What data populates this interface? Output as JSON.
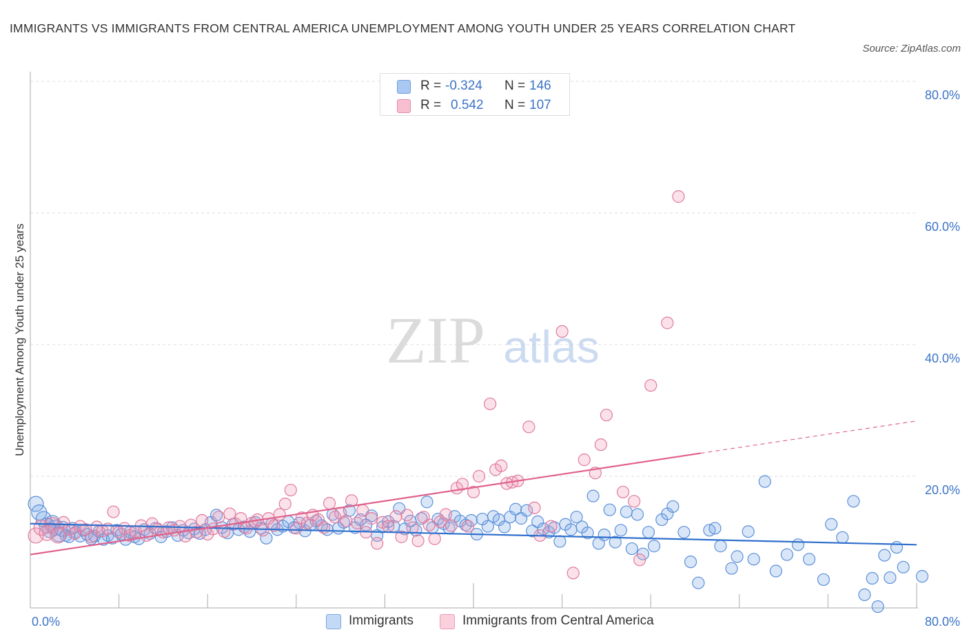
{
  "title": "IMMIGRANTS VS IMMIGRANTS FROM CENTRAL AMERICA UNEMPLOYMENT AMONG YOUTH UNDER 25 YEARS CORRELATION CHART",
  "source": "Source: ZipAtlas.com",
  "watermark": {
    "zip": "ZIP",
    "atlas": "atlas"
  },
  "legend": {
    "r_label": "R =",
    "n_label": "N =",
    "rows": [
      {
        "r": "-0.324",
        "n": "146",
        "color": "#a9c8f2",
        "border": "#6b9ee0"
      },
      {
        "r": "0.542",
        "n": "107",
        "color": "#f7bfd0",
        "border": "#e889a6"
      }
    ]
  },
  "bottom_legend": [
    {
      "label": "Immigrants",
      "color": "#c4d9f5",
      "border": "#7aa6e0"
    },
    {
      "label": "Immigrants from Central America",
      "color": "#f9d0dc",
      "border": "#eb9ab3"
    }
  ],
  "chart_data": {
    "type": "scatter",
    "ylabel": "Unemployment Among Youth under 25 years",
    "x_tick_labels": [
      "0.0%",
      "80.0%"
    ],
    "y_tick_labels": [
      "20.0%",
      "40.0%",
      "60.0%",
      "80.0%"
    ],
    "xlim": [
      0,
      80
    ],
    "ylim": [
      0,
      80
    ],
    "grid": true,
    "series": [
      {
        "name": "Immigrants",
        "color": "#5b8fd9",
        "fill": "rgba(120,165,230,0.28)",
        "trend": {
          "x0": 0,
          "y0": 12.8,
          "x1": 80,
          "y1": 9.6,
          "color": "#2f6fcb"
        },
        "points": [
          [
            0.5,
            15.8
          ],
          [
            0.8,
            14.5
          ],
          [
            1.2,
            13.5
          ],
          [
            1.5,
            12.5
          ],
          [
            1.8,
            11.8
          ],
          [
            2.0,
            12.9
          ],
          [
            2.3,
            12.2
          ],
          [
            2.6,
            11.2
          ],
          [
            2.9,
            12.0
          ],
          [
            3.2,
            11.0
          ],
          [
            3.5,
            10.8
          ],
          [
            3.8,
            12.1
          ],
          [
            4.1,
            11.5
          ],
          [
            4.5,
            10.9
          ],
          [
            4.8,
            11.8
          ],
          [
            5.1,
            11.2
          ],
          [
            5.5,
            10.5
          ],
          [
            5.8,
            10.9
          ],
          [
            6.2,
            11.6
          ],
          [
            6.6,
            10.4
          ],
          [
            7.0,
            11.0
          ],
          [
            7.4,
            10.6
          ],
          [
            7.8,
            11.8
          ],
          [
            8.2,
            11.2
          ],
          [
            8.6,
            10.4
          ],
          [
            9.0,
            11.5
          ],
          [
            9.4,
            10.8
          ],
          [
            9.8,
            10.5
          ],
          [
            10.3,
            11.9
          ],
          [
            10.8,
            11.3
          ],
          [
            11.3,
            12.1
          ],
          [
            11.8,
            10.8
          ],
          [
            12.3,
            11.6
          ],
          [
            12.8,
            12.2
          ],
          [
            13.3,
            11.0
          ],
          [
            13.8,
            11.8
          ],
          [
            14.3,
            11.4
          ],
          [
            14.8,
            12.0
          ],
          [
            15.3,
            11.3
          ],
          [
            15.8,
            11.9
          ],
          [
            16.3,
            13.0
          ],
          [
            16.8,
            14.1
          ],
          [
            17.3,
            12.2
          ],
          [
            17.8,
            11.4
          ],
          [
            18.3,
            12.7
          ],
          [
            18.8,
            11.9
          ],
          [
            19.3,
            12.3
          ],
          [
            19.8,
            11.6
          ],
          [
            20.3,
            13.0
          ],
          [
            20.8,
            12.1
          ],
          [
            21.3,
            10.6
          ],
          [
            21.8,
            12.8
          ],
          [
            22.3,
            11.9
          ],
          [
            22.8,
            12.4
          ],
          [
            23.3,
            13.1
          ],
          [
            23.8,
            12.2
          ],
          [
            24.3,
            12.9
          ],
          [
            24.8,
            11.7
          ],
          [
            25.3,
            12.6
          ],
          [
            25.8,
            13.2
          ],
          [
            26.3,
            12.5
          ],
          [
            26.8,
            11.9
          ],
          [
            27.3,
            14.2
          ],
          [
            27.8,
            12.1
          ],
          [
            28.3,
            13.0
          ],
          [
            28.8,
            14.8
          ],
          [
            29.3,
            12.2
          ],
          [
            29.8,
            13.4
          ],
          [
            30.3,
            12.6
          ],
          [
            30.8,
            14.0
          ],
          [
            31.3,
            11.0
          ],
          [
            31.8,
            12.3
          ],
          [
            32.3,
            13.1
          ],
          [
            32.8,
            12.4
          ],
          [
            33.3,
            15.1
          ],
          [
            33.8,
            12.0
          ],
          [
            34.3,
            13.2
          ],
          [
            34.8,
            11.8
          ],
          [
            35.3,
            13.6
          ],
          [
            35.8,
            16.1
          ],
          [
            36.3,
            12.2
          ],
          [
            36.8,
            13.5
          ],
          [
            37.3,
            12.8
          ],
          [
            37.8,
            12.1
          ],
          [
            38.3,
            13.9
          ],
          [
            38.8,
            13.2
          ],
          [
            39.3,
            12.6
          ],
          [
            39.8,
            13.3
          ],
          [
            40.3,
            11.2
          ],
          [
            40.8,
            13.5
          ],
          [
            41.3,
            12.4
          ],
          [
            41.8,
            13.9
          ],
          [
            42.3,
            13.4
          ],
          [
            42.8,
            12.3
          ],
          [
            43.3,
            13.8
          ],
          [
            43.8,
            15.0
          ],
          [
            44.3,
            13.6
          ],
          [
            44.8,
            14.8
          ],
          [
            45.3,
            11.7
          ],
          [
            45.8,
            13.1
          ],
          [
            46.3,
            12.0
          ],
          [
            46.8,
            11.5
          ],
          [
            47.3,
            12.2
          ],
          [
            47.8,
            10.1
          ],
          [
            48.3,
            12.7
          ],
          [
            48.8,
            11.9
          ],
          [
            49.3,
            13.8
          ],
          [
            49.8,
            12.3
          ],
          [
            50.3,
            11.4
          ],
          [
            50.8,
            17.0
          ],
          [
            51.3,
            9.8
          ],
          [
            51.8,
            11.1
          ],
          [
            52.3,
            14.9
          ],
          [
            52.8,
            10.0
          ],
          [
            53.3,
            11.8
          ],
          [
            53.8,
            14.6
          ],
          [
            54.3,
            9.0
          ],
          [
            54.8,
            14.2
          ],
          [
            55.3,
            8.2
          ],
          [
            55.8,
            11.5
          ],
          [
            56.3,
            9.4
          ],
          [
            57.0,
            13.4
          ],
          [
            57.5,
            14.3
          ],
          [
            58.0,
            15.4
          ],
          [
            59.0,
            11.5
          ],
          [
            59.6,
            7.0
          ],
          [
            60.3,
            3.8
          ],
          [
            61.3,
            11.8
          ],
          [
            61.8,
            12.1
          ],
          [
            62.3,
            9.4
          ],
          [
            63.3,
            6.0
          ],
          [
            63.8,
            7.8
          ],
          [
            64.8,
            11.6
          ],
          [
            65.3,
            7.4
          ],
          [
            66.3,
            19.2
          ],
          [
            67.3,
            5.6
          ],
          [
            68.3,
            8.1
          ],
          [
            69.3,
            9.6
          ],
          [
            70.3,
            7.4
          ],
          [
            71.6,
            4.3
          ],
          [
            72.3,
            12.7
          ],
          [
            73.3,
            10.7
          ],
          [
            74.3,
            16.2
          ],
          [
            75.3,
            2.0
          ],
          [
            76.0,
            4.5
          ],
          [
            76.5,
            0.2
          ],
          [
            77.1,
            8.0
          ],
          [
            77.6,
            4.6
          ],
          [
            78.2,
            9.2
          ],
          [
            78.8,
            6.2
          ],
          [
            80.5,
            4.8
          ]
        ]
      },
      {
        "name": "Immigrants from Central America",
        "color": "#e07a9c",
        "fill": "rgba(240,150,180,0.28)",
        "trend": {
          "x0": 0,
          "y0": 8.1,
          "x1": 60.5,
          "y1": 23.5,
          "dash_x1": 80,
          "dash_y1": 28.4,
          "color": "#e0608a"
        },
        "points": [
          [
            0.5,
            11.0
          ],
          [
            1.0,
            12.2
          ],
          [
            1.5,
            11.4
          ],
          [
            2.0,
            12.6
          ],
          [
            2.5,
            11.0
          ],
          [
            3.0,
            13.0
          ],
          [
            3.5,
            11.9
          ],
          [
            4.0,
            11.3
          ],
          [
            4.5,
            12.4
          ],
          [
            5.0,
            11.9
          ],
          [
            5.5,
            10.8
          ],
          [
            6.0,
            12.3
          ],
          [
            6.5,
            11.7
          ],
          [
            7.0,
            12.0
          ],
          [
            7.5,
            14.6
          ],
          [
            8.0,
            11.5
          ],
          [
            8.5,
            12.1
          ],
          [
            9.0,
            11.0
          ],
          [
            9.5,
            11.6
          ],
          [
            10.0,
            12.5
          ],
          [
            10.5,
            11.0
          ],
          [
            11.0,
            12.8
          ],
          [
            11.5,
            12.0
          ],
          [
            12.0,
            11.5
          ],
          [
            12.5,
            12.2
          ],
          [
            13.0,
            11.8
          ],
          [
            13.5,
            12.4
          ],
          [
            14.0,
            10.9
          ],
          [
            14.5,
            12.6
          ],
          [
            15.0,
            11.5
          ],
          [
            15.5,
            13.3
          ],
          [
            16.0,
            11.2
          ],
          [
            16.5,
            12.0
          ],
          [
            17.0,
            13.8
          ],
          [
            17.5,
            11.6
          ],
          [
            18.0,
            14.3
          ],
          [
            18.5,
            12.8
          ],
          [
            19.0,
            13.6
          ],
          [
            19.5,
            12.1
          ],
          [
            20.0,
            12.9
          ],
          [
            20.5,
            13.4
          ],
          [
            21.0,
            11.8
          ],
          [
            21.5,
            13.6
          ],
          [
            22.0,
            12.5
          ],
          [
            22.5,
            14.2
          ],
          [
            23.0,
            15.8
          ],
          [
            23.5,
            17.9
          ],
          [
            24.0,
            12.1
          ],
          [
            24.5,
            13.7
          ],
          [
            25.0,
            12.9
          ],
          [
            25.5,
            14.1
          ],
          [
            26.0,
            13.4
          ],
          [
            26.5,
            12.2
          ],
          [
            27.0,
            15.9
          ],
          [
            27.5,
            13.8
          ],
          [
            28.0,
            14.4
          ],
          [
            28.5,
            13.2
          ],
          [
            29.0,
            16.3
          ],
          [
            29.5,
            12.9
          ],
          [
            30.0,
            14.8
          ],
          [
            30.3,
            11.5
          ],
          [
            30.8,
            13.6
          ],
          [
            31.3,
            9.8
          ],
          [
            31.8,
            13.0
          ],
          [
            32.3,
            12.4
          ],
          [
            33.0,
            13.9
          ],
          [
            33.5,
            10.8
          ],
          [
            34.0,
            14.1
          ],
          [
            34.5,
            12.2
          ],
          [
            35.0,
            10.2
          ],
          [
            35.5,
            13.8
          ],
          [
            36.0,
            12.6
          ],
          [
            36.5,
            10.5
          ],
          [
            37.0,
            13.1
          ],
          [
            37.5,
            14.2
          ],
          [
            38.0,
            12.5
          ],
          [
            38.5,
            18.2
          ],
          [
            39.0,
            18.8
          ],
          [
            39.5,
            12.4
          ],
          [
            40.0,
            17.6
          ],
          [
            40.5,
            20.0
          ],
          [
            41.5,
            31.0
          ],
          [
            42.0,
            21.0
          ],
          [
            42.5,
            21.6
          ],
          [
            43.0,
            18.9
          ],
          [
            43.5,
            19.1
          ],
          [
            44.0,
            19.3
          ],
          [
            45.0,
            27.5
          ],
          [
            45.5,
            15.2
          ],
          [
            46.0,
            11.0
          ],
          [
            47.0,
            12.4
          ],
          [
            48.0,
            42.0
          ],
          [
            49.0,
            5.3
          ],
          [
            50.0,
            22.5
          ],
          [
            51.0,
            20.5
          ],
          [
            51.5,
            24.8
          ],
          [
            52.0,
            29.3
          ],
          [
            53.5,
            17.6
          ],
          [
            54.5,
            16.2
          ],
          [
            55.0,
            7.3
          ],
          [
            56.0,
            33.8
          ],
          [
            57.5,
            43.3
          ],
          [
            58.5,
            62.5
          ]
        ]
      }
    ]
  }
}
